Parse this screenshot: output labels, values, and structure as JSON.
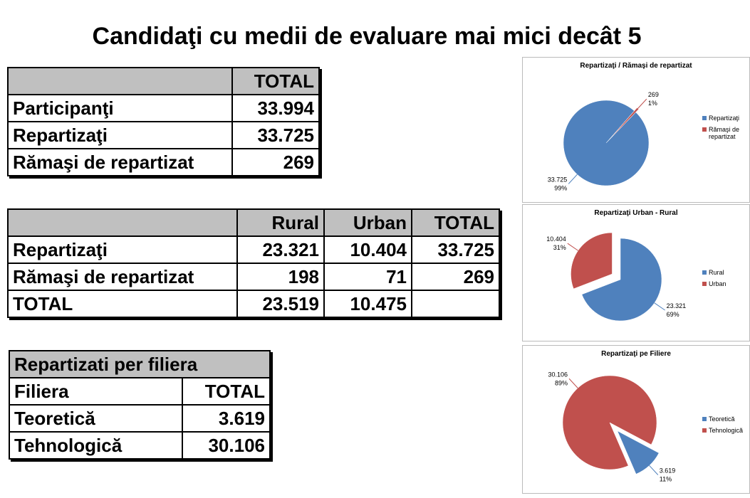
{
  "title": "Candidaţi cu medii de evaluare mai mici decât 5",
  "tables": [
    {
      "columns": [
        "TOTAL"
      ],
      "rows": [
        {
          "label": "Participanţi",
          "values": [
            "33.994"
          ]
        },
        {
          "label": "Repartizaţi",
          "values": [
            "33.725"
          ]
        },
        {
          "label": "Rămaşi de repartizat",
          "values": [
            "269"
          ]
        }
      ]
    },
    {
      "columns": [
        "Rural",
        "Urban",
        "TOTAL"
      ],
      "rows": [
        {
          "label": "Repartizaţi",
          "values": [
            "23.321",
            "10.404",
            "33.725"
          ]
        },
        {
          "label": "Rămaşi de repartizat",
          "values": [
            "198",
            "71",
            "269"
          ]
        },
        {
          "label": "TOTAL",
          "values": [
            "23.519",
            "10.475"
          ]
        }
      ]
    },
    {
      "title": "Repartizati per filiera",
      "columns": [
        "Filiera",
        "TOTAL"
      ],
      "rows": [
        {
          "label": "Teoretică",
          "values": [
            "3.619"
          ]
        },
        {
          "label": "Tehnologică",
          "values": [
            "30.106"
          ]
        }
      ]
    }
  ],
  "chart_data": [
    {
      "type": "pie",
      "title": "Repartizaţi / Rămaşi de repartizat",
      "categories": [
        "Repartizaţi",
        "Rămaşi de repartizat"
      ],
      "values": [
        33725,
        269
      ],
      "value_labels": [
        "33.725",
        "269"
      ],
      "percent_labels": [
        "99%",
        "1%"
      ],
      "colors": [
        "#4f81bd",
        "#c0504d"
      ]
    },
    {
      "type": "pie",
      "title": "Repartizaţi Urban - Rural",
      "categories": [
        "Rural",
        "Urban"
      ],
      "values": [
        23321,
        10404
      ],
      "value_labels": [
        "23.321",
        "10.404"
      ],
      "percent_labels": [
        "69%",
        "31%"
      ],
      "colors": [
        "#4f81bd",
        "#c0504d"
      ]
    },
    {
      "type": "pie",
      "title": "Repartizaţi pe Filiere",
      "categories": [
        "Teoretică",
        "Tehnologică"
      ],
      "values": [
        3619,
        30106
      ],
      "value_labels": [
        "3.619",
        "30.106"
      ],
      "percent_labels": [
        "11%",
        "89%"
      ],
      "colors": [
        "#4f81bd",
        "#c0504d"
      ]
    }
  ]
}
